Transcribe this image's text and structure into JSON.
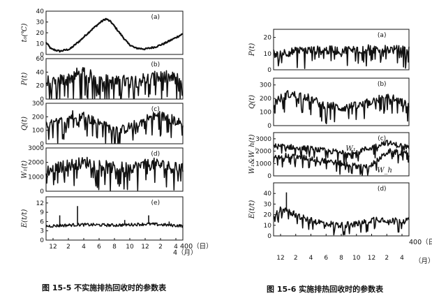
{
  "figures": [
    {
      "caption": "图 15-5   不实施排热回收时的参数表",
      "x_ticks": [
        "12",
        "2",
        "4",
        "6",
        "8",
        "10",
        "12",
        "2",
        "4"
      ],
      "x_end_top": "400（日）",
      "x_end_bottom": "4（月）",
      "panels": [
        {
          "label": "(a)",
          "ylabel": "t₀(℃)",
          "ylim": [
            0,
            40
          ],
          "yticks": [
            "0",
            "10",
            "20",
            "30",
            "40"
          ]
        },
        {
          "label": "(b)",
          "ylabel": "P(t)",
          "ylim": [
            0,
            60
          ],
          "yticks": [
            "0",
            "20",
            "40",
            "60"
          ]
        },
        {
          "label": "(c)",
          "ylabel": "Q(t)",
          "ylim": [
            0,
            300
          ],
          "yticks": [
            "0",
            "100",
            "200",
            "300"
          ]
        },
        {
          "label": "(d)",
          "ylabel": "W₁(t)",
          "ylim": [
            0,
            3000
          ],
          "yticks": [
            "0",
            "1000",
            "2000",
            "3000"
          ]
        },
        {
          "label": "(e)",
          "ylabel": "E(t/t)",
          "ylim": [
            0,
            14
          ],
          "yticks": [
            "0",
            "3",
            "6",
            "9",
            "12"
          ]
        }
      ]
    },
    {
      "caption": "图 15-6   实施排热回收时的参数表",
      "x_ticks": [
        "12",
        "2",
        "4",
        "6",
        "8",
        "10",
        "12",
        "2",
        "4"
      ],
      "x_end_top": "400（日）",
      "x_end_bottom": "（月）",
      "panels": [
        {
          "label": "(a)",
          "ylabel": "P(t)",
          "ylim": [
            0,
            25
          ],
          "yticks": [
            "0",
            "10",
            "20"
          ]
        },
        {
          "label": "(b)",
          "ylabel": "Q(t)",
          "ylim": [
            0,
            350
          ],
          "yticks": [
            "0",
            "100",
            "200",
            "300"
          ]
        },
        {
          "label": "(c)",
          "ylabel": "W₁&W_h(t)",
          "ylim": [
            0,
            3500
          ],
          "yticks": [
            "0",
            "1000",
            "2000",
            "3000"
          ],
          "annotations": [
            "W₁",
            "W_h"
          ]
        },
        {
          "label": "(d)",
          "ylabel": "E(t/t)",
          "ylim": [
            0,
            50
          ],
          "yticks": [
            "0",
            "10",
            "20",
            "30",
            "40"
          ]
        }
      ]
    }
  ],
  "chart_data": [
    {
      "type": "line",
      "title": "图 15-5 不实施排热回收时的参数表",
      "x": {
        "range_days": [
          0,
          400
        ],
        "month_ticks": [
          "12",
          "2",
          "4",
          "6",
          "8",
          "10",
          "12",
          "2",
          "4"
        ]
      },
      "panels": [
        {
          "label": "(a)",
          "ylabel": "t₀(℃)",
          "ylim": [
            0,
            40
          ],
          "keypoints": [
            [
              0,
              11
            ],
            [
              15,
              5
            ],
            [
              40,
              3
            ],
            [
              70,
              5
            ],
            [
              100,
              13
            ],
            [
              130,
              22
            ],
            [
              160,
              30
            ],
            [
              175,
              33
            ],
            [
              190,
              30
            ],
            [
              215,
              20
            ],
            [
              240,
              10
            ],
            [
              260,
              6
            ],
            [
              290,
              5
            ],
            [
              320,
              7
            ],
            [
              345,
              10
            ],
            [
              370,
              14
            ],
            [
              400,
              19
            ]
          ]
        },
        {
          "label": "(b)",
          "ylabel": "P(t)",
          "ylim": [
            0,
            60
          ],
          "keypoints": [
            [
              0,
              25
            ],
            [
              50,
              28
            ],
            [
              100,
              38
            ],
            [
              150,
              30
            ],
            [
              200,
              24
            ],
            [
              250,
              27
            ],
            [
              300,
              30
            ],
            [
              350,
              32
            ],
            [
              400,
              28
            ]
          ]
        },
        {
          "label": "(c)",
          "ylabel": "Q(t)",
          "ylim": [
            0,
            300
          ],
          "keypoints": [
            [
              0,
              130
            ],
            [
              50,
              170
            ],
            [
              90,
              230
            ],
            [
              130,
              180
            ],
            [
              180,
              120
            ],
            [
              220,
              100
            ],
            [
              270,
              150
            ],
            [
              300,
              190
            ],
            [
              330,
              210
            ],
            [
              370,
              180
            ],
            [
              400,
              140
            ]
          ]
        },
        {
          "label": "(d)",
          "ylabel": "W₁(t)",
          "ylim": [
            0,
            3000
          ],
          "keypoints": [
            [
              0,
              1400
            ],
            [
              60,
              1800
            ],
            [
              120,
              2000
            ],
            [
              200,
              1600
            ],
            [
              260,
              1700
            ],
            [
              320,
              1900
            ],
            [
              400,
              1500
            ]
          ]
        },
        {
          "label": "(e)",
          "ylabel": "E(t/t)",
          "ylim": [
            0,
            14
          ],
          "keypoints": [
            [
              0,
              4.5
            ],
            [
              100,
              5
            ],
            [
              200,
              4.8
            ],
            [
              300,
              5.2
            ],
            [
              400,
              4.6
            ]
          ],
          "spikes": [
            [
              40,
              8
            ],
            [
              92,
              11
            ],
            [
              230,
              6.5
            ],
            [
              300,
              8
            ],
            [
              360,
              6
            ]
          ]
        }
      ]
    },
    {
      "type": "line",
      "title": "图 15-6 实施排热回收时的参数表",
      "x": {
        "range_days": [
          0,
          400
        ],
        "month_ticks": [
          "12",
          "2",
          "4",
          "6",
          "8",
          "10",
          "12",
          "2",
          "4"
        ]
      },
      "panels": [
        {
          "label": "(a)",
          "ylabel": "P(t)",
          "ylim": [
            0,
            25
          ],
          "keypoints": [
            [
              0,
              10
            ],
            [
              100,
              12
            ],
            [
              200,
              12
            ],
            [
              300,
              13
            ],
            [
              400,
              12
            ]
          ]
        },
        {
          "label": "(b)",
          "ylabel": "Q(t)",
          "ylim": [
            0,
            350
          ],
          "keypoints": [
            [
              0,
              170
            ],
            [
              40,
              230
            ],
            [
              90,
              220
            ],
            [
              140,
              160
            ],
            [
              200,
              130
            ],
            [
              260,
              150
            ],
            [
              300,
              190
            ],
            [
              340,
              210
            ],
            [
              400,
              150
            ]
          ]
        },
        {
          "label": "(c)",
          "ylabel": "W₁&W_h(t)",
          "ylim": [
            0,
            3500
          ],
          "series": [
            {
              "name": "W₁",
              "keypoints": [
                [
                  0,
                  2400
                ],
                [
                  80,
                  2300
                ],
                [
                  160,
                  2000
                ],
                [
                  220,
                  1900
                ],
                [
                  280,
                  2200
                ],
                [
                  330,
                  2700
                ],
                [
                  400,
                  2300
                ]
              ]
            },
            {
              "name": "W_h",
              "keypoints": [
                [
                  0,
                  1700
                ],
                [
                  80,
                  1500
                ],
                [
                  160,
                  1200
                ],
                [
                  220,
                  900
                ],
                [
                  270,
                  700
                ],
                [
                  300,
                  1100
                ],
                [
                  340,
                  2000
                ],
                [
                  400,
                  1800
                ]
              ]
            }
          ]
        },
        {
          "label": "(d)",
          "ylabel": "E(t/t)",
          "ylim": [
            0,
            50
          ],
          "keypoints": [
            [
              0,
              18
            ],
            [
              20,
              25
            ],
            [
              50,
              22
            ],
            [
              100,
              15
            ],
            [
              150,
              12
            ],
            [
              200,
              10
            ],
            [
              260,
              12
            ],
            [
              300,
              16
            ],
            [
              340,
              15
            ],
            [
              400,
              14
            ]
          ],
          "spikes": [
            [
              38,
              41
            ],
            [
              60,
              24
            ]
          ]
        }
      ]
    }
  ]
}
